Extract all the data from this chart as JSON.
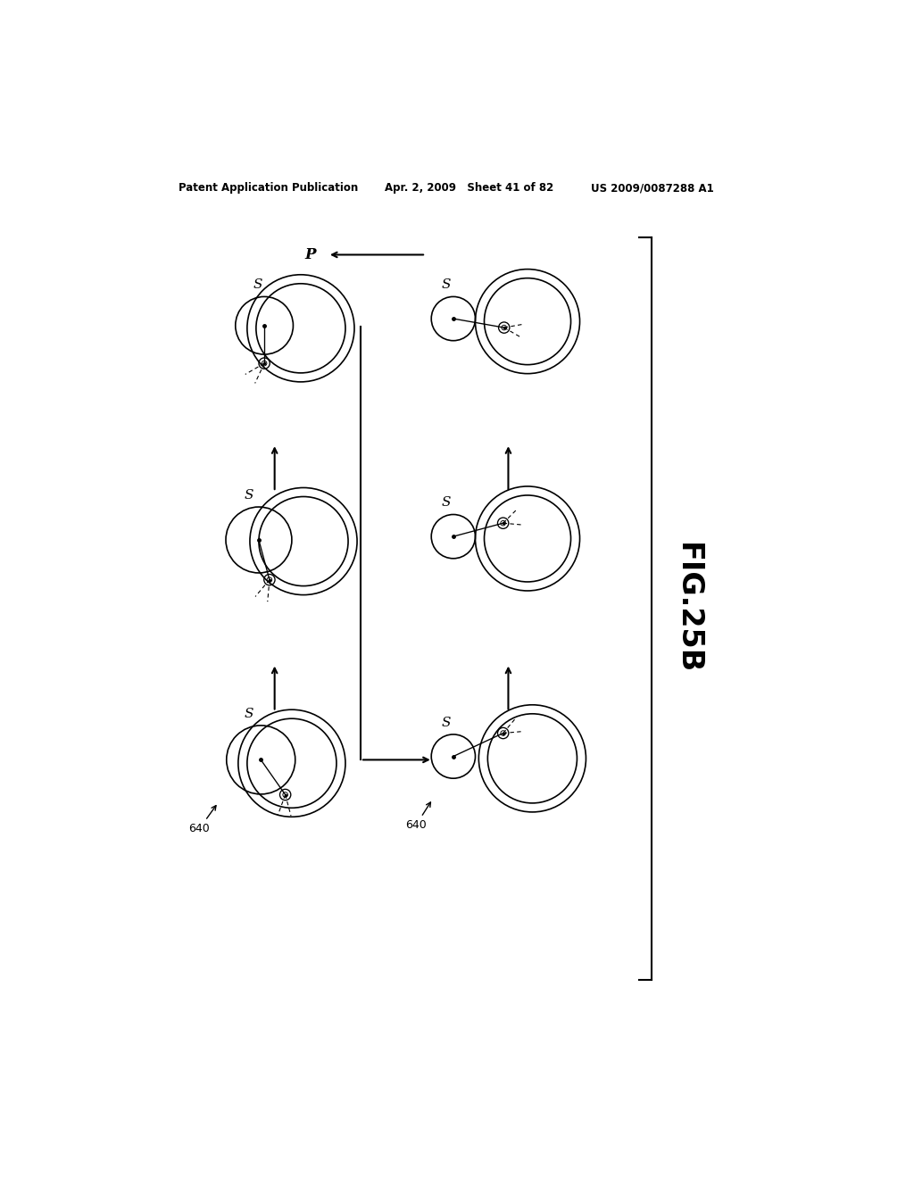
{
  "title_left": "Patent Application Publication",
  "title_mid": "Apr. 2, 2009   Sheet 41 of 82",
  "title_right": "US 2009/0087288 A1",
  "fig_label": "FIG.25B",
  "bg_color": "#ffffff"
}
